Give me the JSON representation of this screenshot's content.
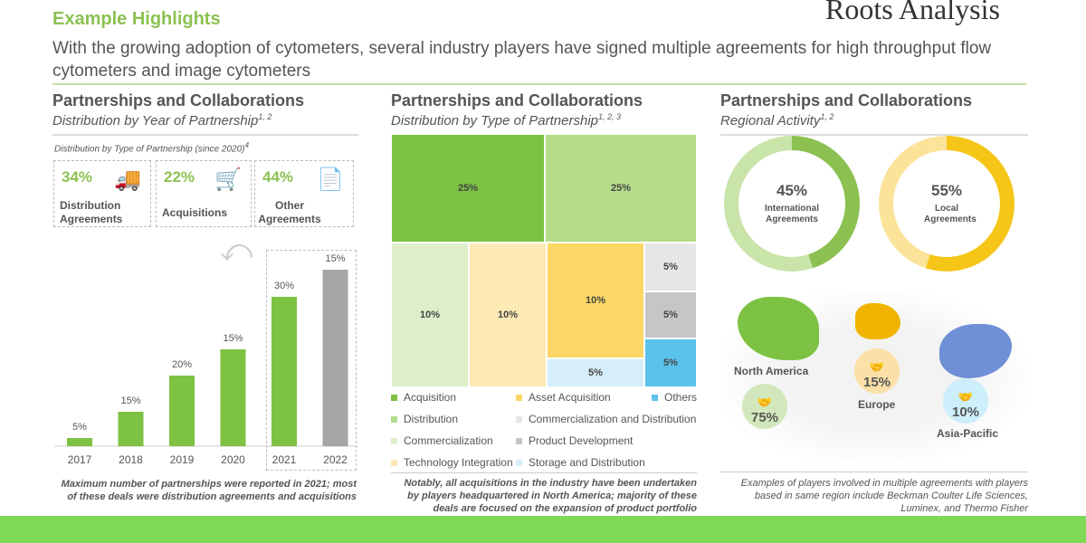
{
  "header": {
    "title": "Example Highlights",
    "logo": "Roots Analysis",
    "subtitle": "With the growing adoption of cytometers, several industry players have signed multiple agreements for high throughput flow cytometers and image cytometers"
  },
  "sections": [
    {
      "title": "Partnerships and Collaborations",
      "subtitle": "Distribution by Year of Partnership",
      "sup": "1, 2"
    },
    {
      "title": "Partnerships and Collaborations",
      "subtitle": "Distribution by Type of Partnership",
      "sup": "1, 2, 3"
    },
    {
      "title": "Partnerships and Collaborations",
      "subtitle": "Regional Activity",
      "sup": "1, 2"
    }
  ],
  "type_since": {
    "label": "Distribution by Type of Partnership (since 2020)",
    "sup": "4",
    "cards": [
      {
        "pct": "34%",
        "label": "Distribution Agreements",
        "icon": "truck-icon"
      },
      {
        "pct": "22%",
        "label": "Acquisitions",
        "icon": "cart-icon"
      },
      {
        "pct": "44%",
        "label": "Other Agreements",
        "icon": "document-icon"
      }
    ]
  },
  "chart_data": [
    {
      "type": "bar",
      "categories": [
        "2017",
        "2018",
        "2019",
        "2020",
        "2021",
        "2022"
      ],
      "values": [
        5,
        15,
        20,
        15,
        30,
        15
      ],
      "labels": [
        "5%",
        "15%",
        "20%",
        "15%",
        "30%",
        "15%"
      ],
      "colors": [
        "#7dc242",
        "#7dc242",
        "#7dc242",
        "#7dc242",
        "#7dc242",
        "#a6a6a6"
      ],
      "highlight": [
        "2021",
        "2022"
      ],
      "grid": false
    },
    {
      "type": "treemap",
      "items": [
        {
          "name": "Acquisition",
          "value": 25,
          "label": "25%",
          "color": "#7dc242"
        },
        {
          "name": "Distribution",
          "value": 25,
          "label": "25%",
          "color": "#b5dc8a"
        },
        {
          "name": "Commercialization",
          "value": 10,
          "label": "10%",
          "color": "#ddefca"
        },
        {
          "name": "Technology Integration",
          "value": 10,
          "label": "10%",
          "color": "#fce9b4"
        },
        {
          "name": "Asset Acquisition",
          "value": 10,
          "label": "10%",
          "color": "#fcd766"
        },
        {
          "name": "Storage and Distribution",
          "value": 5,
          "label": "5%",
          "color": "#d5eef9"
        },
        {
          "name": "Commercialization and Distribution",
          "value": 5,
          "label": "5%",
          "color": "#e6e6e6"
        },
        {
          "name": "Product Development",
          "value": 5,
          "label": "5%",
          "color": "#c6c6c6"
        },
        {
          "name": "Others",
          "value": 5,
          "label": "5%",
          "color": "#5bc2ec"
        }
      ]
    },
    {
      "type": "pie",
      "donuts": [
        {
          "pct": 45,
          "label": "45%",
          "text": "International Agreements",
          "color": "#8cc152",
          "rest": "#c8e4a8"
        },
        {
          "pct": 55,
          "label": "55%",
          "text": "Local Agreements",
          "color": "#f5c518",
          "rest": "#fbe39a"
        }
      ]
    }
  ],
  "legend": [
    "Acquisition",
    "Asset Acquisition",
    "Others",
    "Distribution",
    "Commercialization and Distribution",
    "Commercialization",
    "Product Development",
    "Technology Integration",
    "Storage and Distribution"
  ],
  "regions": [
    {
      "name": "North America",
      "pct": "75%",
      "color": "#7dc242"
    },
    {
      "name": "Europe",
      "pct": "15%",
      "color": "#f0b400"
    },
    {
      "name": "Asia-Pacific",
      "pct": "10%",
      "color": "#6f8fd6"
    }
  ],
  "notes": [
    "Maximum number of partnerships were reported in 2021; most of these deals were distribution agreements and acquisitions",
    "Notably, all acquisitions in the industry have been undertaken by players headquartered in North America; majority of these deals are focused on the expansion of product portfolio",
    "Examples of players involved in multiple agreements with players based in same region include Beckman Coulter Life Sciences, Luminex, and Thermo Fisher"
  ]
}
